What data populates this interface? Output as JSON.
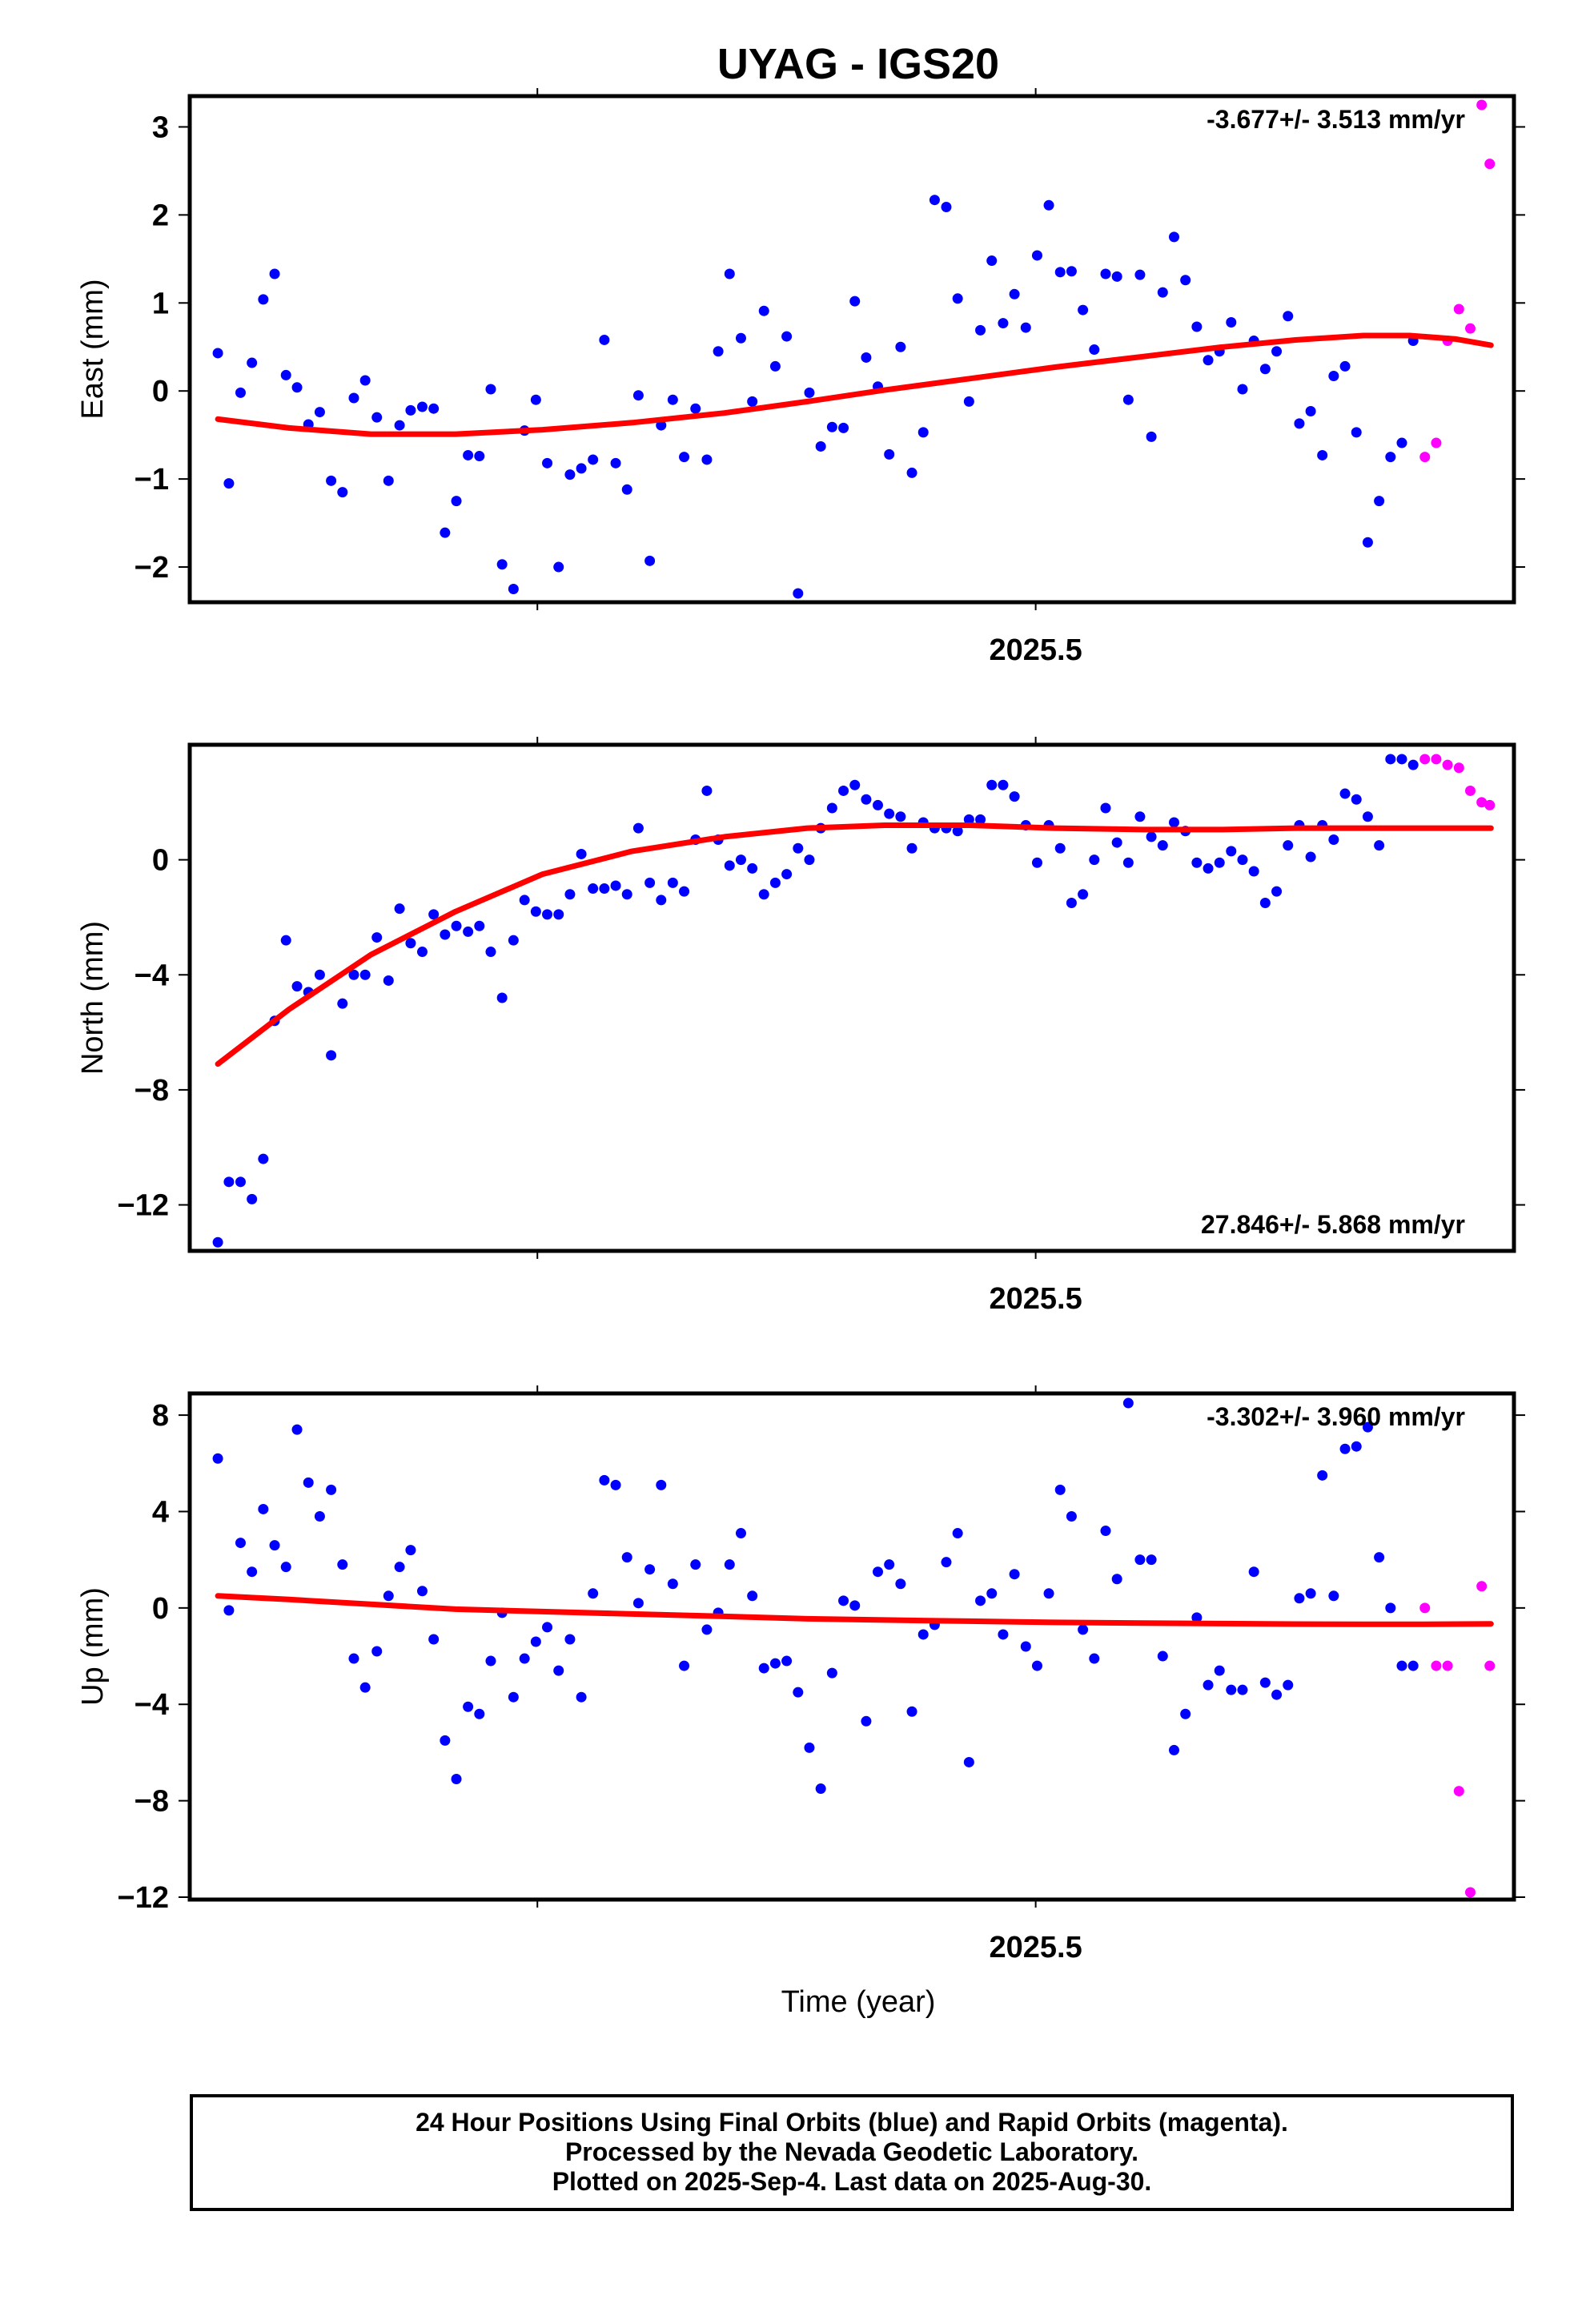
{
  "title": "UYAG - IGS20",
  "x_axis_label": "Time (year)",
  "footer": {
    "line1": "24 Hour Positions Using Final Orbits (blue) and Rapid Orbits (magenta).",
    "line2": "Processed by the Nevada Geodetic Laboratory.",
    "line3": "Plotted on 2025-Sep-4. Last data on 2025-Aug-30."
  },
  "colors": {
    "final": "#0000ff",
    "rapid": "#ff00ff",
    "fit": "#ff0000"
  },
  "chart_data": [
    {
      "type": "scatter",
      "ylabel": "East (mm)",
      "rate_label": "-3.677+/- 3.513 mm/yr",
      "rate_position": "top-right",
      "xlim": [
        2025.217,
        2025.66
      ],
      "ylim": [
        -2.4,
        3.35
      ],
      "x_ticks": [
        2025.5
      ],
      "x_tick_labels": [
        "2025.5"
      ],
      "y_ticks": [
        -2,
        -1,
        0,
        1,
        2,
        3
      ],
      "y_tick_labels": [
        "−2",
        "−1",
        "0",
        "1",
        "2",
        "3"
      ],
      "grid": false,
      "fit": {
        "x": [
          2025.2264,
          2025.2502,
          2025.2776,
          2025.3059,
          2025.335,
          2025.365,
          2025.3959,
          2025.4236,
          2025.4494,
          2025.4779,
          2025.5064,
          2025.5358,
          2025.5626,
          2025.5869,
          2025.6096,
          2025.6251,
          2025.6406,
          2025.6523
        ],
        "y": [
          -0.32,
          -0.42,
          -0.49,
          -0.49,
          -0.44,
          -0.36,
          -0.25,
          -0.12,
          0.01,
          0.14,
          0.27,
          0.39,
          0.5,
          0.58,
          0.63,
          0.63,
          0.59,
          0.52
        ]
      },
      "final_points": {
        "x": [
          2025.2264,
          2025.2301,
          2025.234,
          2025.2378,
          2025.2416,
          2025.2454,
          2025.2492,
          2025.2529,
          2025.2567,
          2025.2605,
          2025.2643,
          2025.2681,
          2025.2719,
          2025.2757,
          2025.2796,
          2025.2835,
          2025.2872,
          2025.2909,
          2025.2948,
          2025.2986,
          2025.3024,
          2025.3062,
          2025.3101,
          2025.3139,
          2025.3177,
          2025.3215,
          2025.3253,
          2025.329,
          2025.3328,
          2025.3366,
          2025.3404,
          2025.3442,
          2025.348,
          2025.3519,
          2025.3557,
          2025.3595,
          2025.3633,
          2025.3671,
          2025.3709,
          2025.3747,
          2025.3786,
          2025.3824,
          2025.3862,
          2025.39,
          2025.3938,
          2025.3976,
          2025.4014,
          2025.4052,
          2025.4091,
          2025.4129,
          2025.4167,
          2025.4205,
          2025.4243,
          2025.4281,
          2025.4319,
          2025.4357,
          2025.4395,
          2025.4433,
          2025.4472,
          2025.451,
          2025.4548,
          2025.4586,
          2025.4624,
          2025.4662,
          2025.4701,
          2025.4739,
          2025.4777,
          2025.4815,
          2025.4853,
          2025.4891,
          2025.4929,
          2025.4967,
          2025.5005,
          2025.5044,
          2025.5082,
          2025.512,
          2025.5158,
          2025.5196,
          2025.5234,
          2025.5272,
          2025.531,
          2025.5349,
          2025.5387,
          2025.5425,
          2025.5463,
          2025.5501,
          2025.5539,
          2025.5577,
          2025.5615,
          2025.5654,
          2025.5692,
          2025.573,
          2025.5768,
          2025.5806,
          2025.5844,
          2025.5882,
          2025.592,
          2025.5959,
          2025.5997,
          2025.6035,
          2025.6073,
          2025.6111,
          2025.6149,
          2025.6187,
          2025.6225,
          2025.6263
        ],
        "y": [
          0.43,
          -1.05,
          -0.02,
          0.32,
          1.04,
          1.33,
          0.18,
          0.04,
          -0.38,
          -0.24,
          -1.02,
          -1.15,
          -0.08,
          0.12,
          -0.3,
          -1.02,
          -0.39,
          -0.22,
          -0.18,
          -0.2,
          -1.61,
          -1.25,
          -0.73,
          -0.74,
          0.02,
          -1.97,
          -2.25,
          -0.45,
          -0.1,
          -0.82,
          -2.0,
          -0.95,
          -0.88,
          -0.78,
          0.58,
          -0.82,
          -1.12,
          -0.05,
          -1.93,
          -0.39,
          -0.1,
          -0.75,
          -0.2,
          -0.78,
          0.45,
          1.33,
          0.6,
          -0.12,
          0.91,
          0.28,
          0.62,
          -2.3,
          -0.02,
          -0.63,
          -0.41,
          -0.42,
          1.02,
          0.38,
          0.05,
          -0.72,
          0.5,
          -0.93,
          -0.47,
          2.17,
          2.09,
          1.05,
          -0.12,
          0.69,
          1.48,
          0.77,
          1.1,
          0.72,
          1.54,
          2.11,
          1.35,
          1.36,
          0.92,
          0.47,
          1.33,
          1.3,
          -0.1,
          1.32,
          -0.52,
          1.12,
          1.75,
          1.26,
          0.73,
          0.35,
          0.45,
          0.78,
          0.02,
          0.57,
          0.25,
          0.45,
          0.85,
          -0.37,
          -0.23,
          -0.73,
          0.17,
          0.28,
          -0.47,
          -1.72,
          -1.25,
          -0.75,
          -0.59,
          0.57
        ]
      },
      "rapid_points": {
        "x": [
          2025.6302,
          2025.634,
          2025.6378,
          2025.6416,
          2025.6454,
          2025.6492
        ],
        "y": [
          -0.75,
          -0.59,
          0.57,
          0.93,
          0.71,
          3.25
        ]
      },
      "extra_rapid": {
        "x": [
          2025.6519
        ],
        "y": [
          2.58
        ]
      }
    },
    {
      "type": "scatter",
      "ylabel": "North (mm)",
      "rate_label": "27.846+/- 5.868 mm/yr",
      "rate_position": "bottom-right",
      "xlim": [
        2025.217,
        2025.66
      ],
      "ylim": [
        -13.6,
        4.0
      ],
      "x_ticks": [
        2025.5
      ],
      "x_tick_labels": [
        "2025.5"
      ],
      "y_ticks": [
        -12,
        -8,
        -4,
        0
      ],
      "y_tick_labels": [
        "−12",
        "−8",
        "−4",
        "0"
      ],
      "grid": false,
      "fit": {
        "x": [
          2025.2264,
          2025.2502,
          2025.2776,
          2025.3059,
          2025.335,
          2025.365,
          2025.3959,
          2025.4236,
          2025.4494,
          2025.4779,
          2025.5064,
          2025.5358,
          2025.5626,
          2025.5869,
          2025.6096,
          2025.6251,
          2025.6406,
          2025.6523
        ],
        "y": [
          -7.1,
          -5.2,
          -3.3,
          -1.8,
          -0.5,
          0.3,
          0.8,
          1.1,
          1.2,
          1.2,
          1.1,
          1.05,
          1.05,
          1.1,
          1.1,
          1.1,
          1.1,
          1.1
        ]
      },
      "final_points": {
        "x": [
          2025.2264,
          2025.2301,
          2025.234,
          2025.2378,
          2025.2416,
          2025.2454,
          2025.2492,
          2025.2529,
          2025.2567,
          2025.2605,
          2025.2643,
          2025.2681,
          2025.2719,
          2025.2757,
          2025.2796,
          2025.2835,
          2025.2872,
          2025.2909,
          2025.2948,
          2025.2986,
          2025.3024,
          2025.3062,
          2025.3101,
          2025.3139,
          2025.3177,
          2025.3215,
          2025.3253,
          2025.329,
          2025.3328,
          2025.3366,
          2025.3404,
          2025.3442,
          2025.348,
          2025.3519,
          2025.3557,
          2025.3595,
          2025.3633,
          2025.3671,
          2025.3709,
          2025.3747,
          2025.3786,
          2025.3824,
          2025.3862,
          2025.39,
          2025.3938,
          2025.3976,
          2025.4014,
          2025.4052,
          2025.4091,
          2025.4129,
          2025.4167,
          2025.4205,
          2025.4243,
          2025.4281,
          2025.4319,
          2025.4357,
          2025.4395,
          2025.4433,
          2025.4472,
          2025.451,
          2025.4548,
          2025.4586,
          2025.4624,
          2025.4662,
          2025.4701,
          2025.4739,
          2025.4777,
          2025.4815,
          2025.4853,
          2025.4891,
          2025.4929,
          2025.4967,
          2025.5005,
          2025.5044,
          2025.5082,
          2025.512,
          2025.5158,
          2025.5196,
          2025.5234,
          2025.5272,
          2025.531,
          2025.5349,
          2025.5387,
          2025.5425,
          2025.5463,
          2025.5501,
          2025.5539,
          2025.5577,
          2025.5615,
          2025.5654,
          2025.5692,
          2025.573,
          2025.5768,
          2025.5806,
          2025.5844,
          2025.5882,
          2025.592,
          2025.5959,
          2025.5997,
          2025.6035,
          2025.6073,
          2025.6111,
          2025.6149,
          2025.6187,
          2025.6225,
          2025.6263
        ],
        "y": [
          -13.3,
          -11.2,
          -11.2,
          -11.8,
          -10.4,
          -5.6,
          -2.8,
          -4.4,
          -4.6,
          -4.0,
          -6.8,
          -5.0,
          -4.0,
          -4.0,
          -2.7,
          -4.2,
          -1.7,
          -2.9,
          -3.2,
          -1.9,
          -2.6,
          -2.3,
          -2.5,
          -2.3,
          -3.2,
          -4.8,
          -2.8,
          -1.4,
          -1.8,
          -1.9,
          -1.9,
          -1.2,
          0.2,
          -1.0,
          -1.0,
          -0.9,
          -1.2,
          1.1,
          -0.8,
          -1.4,
          -0.8,
          -1.1,
          0.7,
          2.4,
          0.7,
          -0.2,
          0.0,
          -0.3,
          -1.2,
          -0.8,
          -0.5,
          0.4,
          0.0,
          1.1,
          1.8,
          2.4,
          2.6,
          2.1,
          1.9,
          1.6,
          1.5,
          0.4,
          1.3,
          1.1,
          1.1,
          1.0,
          1.4,
          1.4,
          2.6,
          2.6,
          2.2,
          1.2,
          -0.1,
          1.2,
          0.4,
          -1.5,
          -1.2,
          0.0,
          1.8,
          0.6,
          -0.1,
          1.5,
          0.8,
          0.5,
          1.3,
          1.0,
          -0.1,
          -0.3,
          -0.1,
          0.3,
          0.0,
          -0.4,
          -1.5,
          -1.1,
          0.5,
          1.2,
          0.1,
          1.2,
          0.7,
          2.3,
          2.1,
          1.5,
          0.5,
          3.5,
          3.5,
          3.3
        ],
        "note": ""
      },
      "rapid_points": {
        "x": [
          2025.6302,
          2025.634,
          2025.6378,
          2025.6416,
          2025.6454,
          2025.6492
        ],
        "y": [
          3.5,
          3.5,
          3.3,
          3.2,
          2.4,
          2.0
        ]
      },
      "extra_rapid": {
        "x": [
          2025.6519
        ],
        "y": [
          1.9
        ]
      }
    },
    {
      "type": "scatter",
      "ylabel": "Up (mm)",
      "rate_label": "-3.302+/- 3.960 mm/yr",
      "rate_position": "top-right",
      "xlim": [
        2025.217,
        2025.66
      ],
      "ylim": [
        -12.1,
        8.9
      ],
      "x_ticks": [
        2025.5
      ],
      "x_tick_labels": [
        "2025.5"
      ],
      "y_ticks": [
        -12,
        -8,
        -4,
        0,
        4,
        8
      ],
      "y_tick_labels": [
        "−12",
        "−8",
        "−4",
        "0",
        "4",
        "8"
      ],
      "grid": false,
      "fit": {
        "x": [
          2025.2264,
          2025.2502,
          2025.2776,
          2025.3059,
          2025.335,
          2025.365,
          2025.3959,
          2025.4236,
          2025.4494,
          2025.4779,
          2025.5064,
          2025.5358,
          2025.5626,
          2025.5869,
          2025.6096,
          2025.6251,
          2025.6406,
          2025.6523
        ],
        "y": [
          0.5,
          0.35,
          0.15,
          -0.05,
          -0.15,
          -0.25,
          -0.35,
          -0.45,
          -0.5,
          -0.55,
          -0.6,
          -0.63,
          -0.65,
          -0.67,
          -0.68,
          -0.68,
          -0.67,
          -0.66
        ]
      },
      "final_points": {
        "x": [
          2025.2264,
          2025.2301,
          2025.234,
          2025.2378,
          2025.2416,
          2025.2454,
          2025.2492,
          2025.2529,
          2025.2567,
          2025.2605,
          2025.2643,
          2025.2681,
          2025.2719,
          2025.2757,
          2025.2796,
          2025.2835,
          2025.2872,
          2025.2909,
          2025.2948,
          2025.2986,
          2025.3024,
          2025.3062,
          2025.3101,
          2025.3139,
          2025.3177,
          2025.3215,
          2025.3253,
          2025.329,
          2025.3328,
          2025.3366,
          2025.3404,
          2025.3442,
          2025.348,
          2025.3519,
          2025.3557,
          2025.3595,
          2025.3633,
          2025.3671,
          2025.3709,
          2025.3747,
          2025.3786,
          2025.3824,
          2025.3862,
          2025.39,
          2025.3938,
          2025.3976,
          2025.4014,
          2025.4052,
          2025.4091,
          2025.4129,
          2025.4167,
          2025.4205,
          2025.4243,
          2025.4281,
          2025.4319,
          2025.4357,
          2025.4395,
          2025.4433,
          2025.4472,
          2025.451,
          2025.4548,
          2025.4586,
          2025.4624,
          2025.4662,
          2025.4701,
          2025.4739,
          2025.4777,
          2025.4815,
          2025.4853,
          2025.4891,
          2025.4929,
          2025.4967,
          2025.5005,
          2025.5044,
          2025.5082,
          2025.512,
          2025.5158,
          2025.5196,
          2025.5234,
          2025.5272,
          2025.531,
          2025.5349,
          2025.5387,
          2025.5425,
          2025.5463,
          2025.5501,
          2025.5539,
          2025.5577,
          2025.5615,
          2025.5654,
          2025.5692,
          2025.573,
          2025.5768,
          2025.5806,
          2025.5844,
          2025.5882,
          2025.592,
          2025.5959,
          2025.5997,
          2025.6035,
          2025.6073,
          2025.6111,
          2025.6149,
          2025.6187,
          2025.6225,
          2025.6263
        ],
        "y": [
          6.2,
          -0.1,
          2.7,
          1.5,
          4.1,
          2.6,
          1.7,
          7.4,
          5.2,
          3.8,
          4.9,
          1.8,
          -2.1,
          -3.3,
          -1.8,
          0.5,
          1.7,
          2.4,
          0.7,
          -1.3,
          -5.5,
          -7.1,
          -4.1,
          -4.4,
          -2.2,
          -0.2,
          -3.7,
          -2.1,
          -1.4,
          -0.8,
          -2.6,
          -1.3,
          -3.7,
          0.6,
          5.3,
          5.1,
          2.1,
          0.2,
          1.6,
          5.1,
          1.0,
          -2.4,
          1.8,
          -0.9,
          -0.2,
          1.8,
          3.1,
          0.5,
          -2.5,
          -2.3,
          -2.2,
          -3.5,
          -5.8,
          -7.5,
          -2.7,
          0.3,
          0.1,
          -4.7,
          1.5,
          1.8,
          1.0,
          -4.3,
          -1.1,
          -0.7,
          1.9,
          3.1,
          -6.4,
          0.3,
          0.6,
          -1.1,
          1.4,
          -1.6,
          -2.4,
          0.6,
          4.9,
          3.8,
          -0.9,
          -2.1,
          3.2,
          1.2,
          8.5,
          2.0,
          2.0,
          -2.0,
          -5.9,
          -4.4,
          -0.4,
          -3.2,
          -2.6,
          -3.4,
          -3.4,
          1.5,
          -3.1,
          -3.6,
          -3.2,
          0.4,
          0.6,
          5.5,
          0.5,
          6.6,
          6.7,
          7.5,
          2.1,
          0.0,
          -2.4,
          -2.4
        ],
        "note": ""
      },
      "rapid_points": {
        "x": [
          2025.6302,
          2025.634,
          2025.6378,
          2025.6416,
          2025.6454,
          2025.6492
        ],
        "y": [
          0.0,
          -2.4,
          -2.4,
          -7.6,
          -11.8,
          0.9
        ]
      },
      "extra_rapid": {
        "x": [
          2025.6519
        ],
        "y": [
          -2.4
        ]
      }
    }
  ]
}
